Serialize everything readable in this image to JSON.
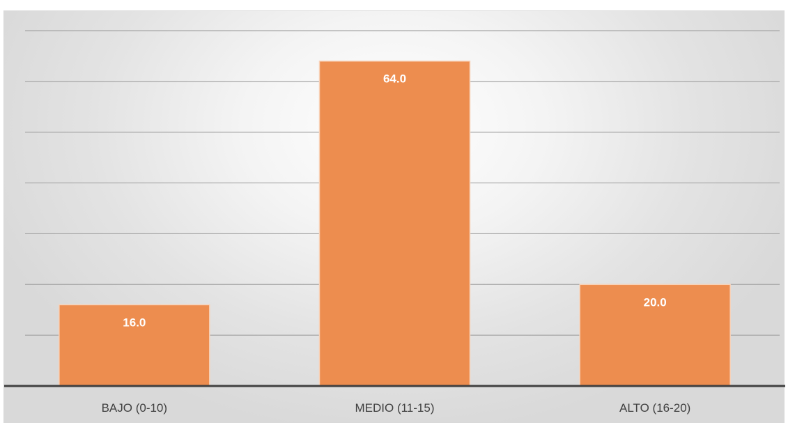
{
  "chart_data": {
    "type": "bar",
    "categories": [
      "BAJO (0-10)",
      "MEDIO (11-15)",
      "ALTO (16-20)"
    ],
    "values": [
      16.0,
      64.0,
      20.0
    ],
    "data_labels": [
      "16.0",
      "64.0",
      "20.0"
    ],
    "title": "",
    "xlabel": "",
    "ylabel": "",
    "ylim": [
      0,
      70
    ],
    "grid": true,
    "legend": "none",
    "colors": {
      "bar": "#ED8D4F",
      "bar_border": "#F8D2B8",
      "gridline": "#A6A6A6",
      "axis": "#404040",
      "tick_text": "#404040",
      "data_label_text": "#FFFFFF"
    }
  }
}
